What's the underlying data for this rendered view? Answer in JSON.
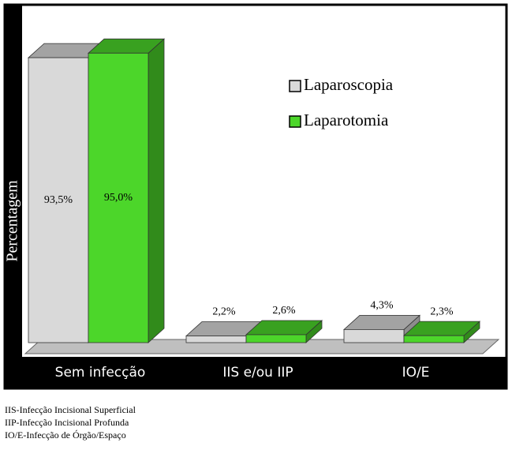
{
  "chart_data": {
    "type": "bar3d",
    "y_label": "Percentagem",
    "categories": [
      "Sem infecção",
      "IIS e/ou IIP",
      "IO/E"
    ],
    "series": [
      {
        "name": "Laparoscopia",
        "color": "#d9d9d9",
        "values": [
          93.5,
          2.2,
          4.3
        ],
        "value_labels": [
          "93,5%",
          "2,2%",
          "4,3%"
        ]
      },
      {
        "name": "Laparotomia",
        "color": "#4cd62a",
        "values": [
          95.0,
          2.6,
          2.3
        ],
        "value_labels": [
          "95,0%",
          "2,6%",
          "2,3%"
        ]
      }
    ],
    "ylim": [
      0,
      100
    ],
    "legend": "upper right"
  },
  "notes": [
    "IIS-Infecção Incisional Superficial",
    "IIP-Infecção Incisional Profunda",
    "IO/E-Infecção de Órgão/Espaço"
  ]
}
